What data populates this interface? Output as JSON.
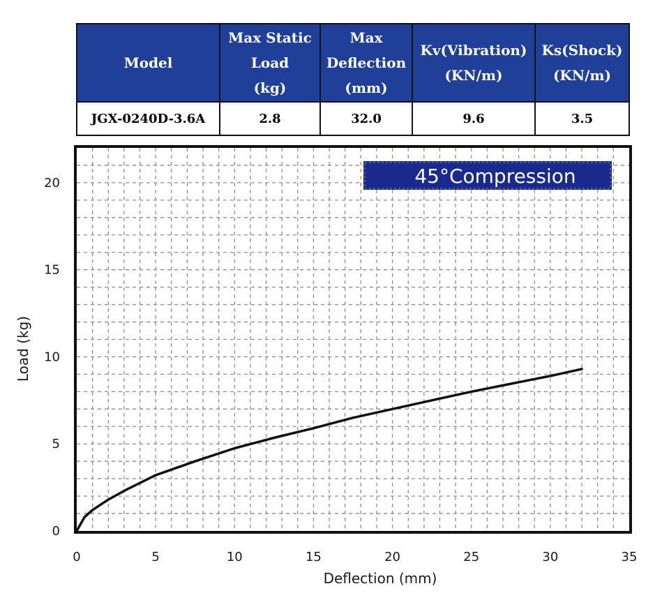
{
  "spec_table": {
    "headers": [
      [
        "Model"
      ],
      [
        "Max Static",
        "Load",
        "(kg)"
      ],
      [
        "Max",
        "Deflection",
        "(mm)"
      ],
      [
        "Kv(Vibration)",
        "(KN/m)"
      ],
      [
        "Ks(Shock)",
        "(KN/m)"
      ]
    ],
    "row": [
      "JGX-0240D-3.6A",
      "2.8",
      "32.0",
      "9.6",
      "3.5"
    ],
    "header_color": "#1f3f98"
  },
  "chart_data": {
    "type": "line",
    "badge": "45°Compression",
    "badge_color": "#1a2a8c",
    "xlabel": "Deflection (mm)",
    "ylabel": "Load (kg)",
    "xlim": [
      0,
      35
    ],
    "ylim": [
      0,
      22
    ],
    "xticks": [
      "0",
      "5",
      "10",
      "15",
      "20",
      "25",
      "30",
      "35"
    ],
    "yticks": [
      "0",
      "5",
      "10",
      "15",
      "20"
    ],
    "grid": true,
    "series": [
      {
        "x": [
          0,
          0.5,
          1,
          2,
          3,
          5,
          7.5,
          10,
          12.5,
          15,
          17.5,
          20,
          22.5,
          25,
          27.5,
          30,
          32
        ],
        "y": [
          0,
          0.8,
          1.2,
          1.8,
          2.3,
          3.2,
          4.0,
          4.75,
          5.35,
          5.9,
          6.5,
          7.0,
          7.5,
          8.0,
          8.45,
          8.9,
          9.3
        ]
      }
    ]
  }
}
